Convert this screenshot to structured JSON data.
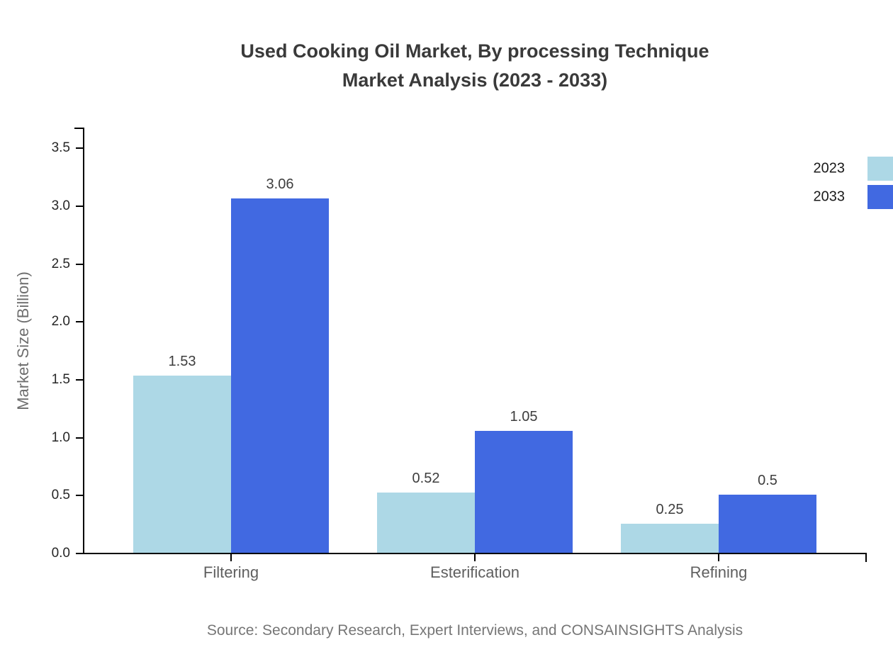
{
  "title": {
    "line1": "Used Cooking Oil Market, By processing Technique",
    "line2": "Market Analysis (2023 - 2033)"
  },
  "y_axis": {
    "label": "Market Size (Billion)",
    "ticks": [
      "0.0",
      "0.5",
      "1.0",
      "1.5",
      "2.0",
      "2.5",
      "3.0",
      "3.5"
    ]
  },
  "legend": [
    {
      "label": "2023",
      "color": "#ADD8E6"
    },
    {
      "label": "2033",
      "color": "#4169E1"
    }
  ],
  "source": "Source: Secondary Research, Expert Interviews, and CONSAINSIGHTS Analysis",
  "chart_data": {
    "type": "bar",
    "title": "Used Cooking Oil Market, By processing Technique Market Analysis (2023 - 2033)",
    "categories": [
      "Filtering",
      "Esterification",
      "Refining"
    ],
    "series": [
      {
        "name": "2023",
        "color": "#ADD8E6",
        "values": [
          1.53,
          0.52,
          0.25
        ],
        "value_labels": [
          "1.53",
          "0.52",
          "0.25"
        ]
      },
      {
        "name": "2033",
        "color": "#4169E1",
        "values": [
          3.06,
          1.05,
          0.5
        ],
        "value_labels": [
          "3.06",
          "1.05",
          "0.5"
        ]
      }
    ],
    "xlabel": "",
    "ylabel": "Market Size (Billion)",
    "ylim": [
      0,
      3.5
    ],
    "ytick_step": 0.5,
    "grid": false,
    "legend_position": "right-outside"
  }
}
